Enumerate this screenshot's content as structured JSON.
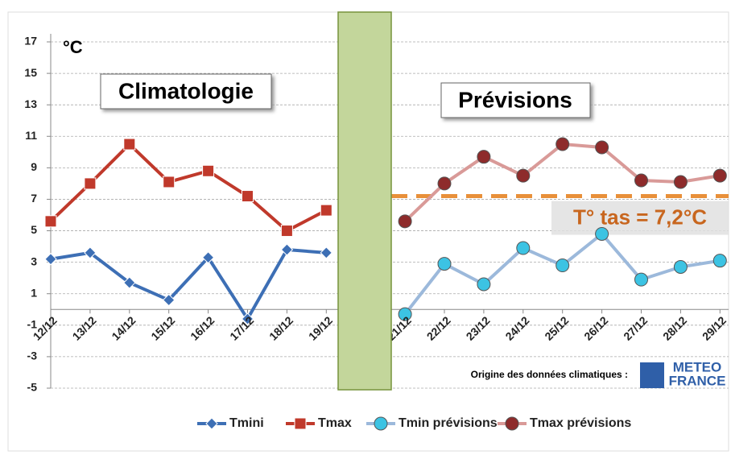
{
  "chart_data": {
    "type": "line",
    "unit_label": "°C",
    "annotations": [
      "Climatologie",
      "Prévisions"
    ],
    "source_label": "Origine des données climatiques :",
    "logo": [
      "METEO",
      "FRANCE"
    ],
    "categories": [
      "12/12",
      "13/12",
      "14/12",
      "15/12",
      "16/12",
      "17/12",
      "18/12",
      "19/12",
      null,
      "21/12",
      "22/12",
      "23/12",
      "24/12",
      "25/12",
      "26/12",
      "27/12",
      "28/12",
      "29/12"
    ],
    "series": [
      {
        "name": "Tmini",
        "color": "#3d6fb5",
        "marker": "diamond",
        "marker_color": "#3d6fb5",
        "values": [
          3.2,
          3.6,
          1.7,
          0.6,
          3.3,
          -0.6,
          3.8,
          3.6,
          null,
          null,
          null,
          null,
          null,
          null,
          null,
          null,
          null,
          null
        ]
      },
      {
        "name": "Tmax",
        "color": "#c0392b",
        "marker": "square",
        "marker_color": "#c0392b",
        "values": [
          5.6,
          8.0,
          10.5,
          8.1,
          8.8,
          7.2,
          5.0,
          6.3,
          null,
          null,
          null,
          null,
          null,
          null,
          null,
          null,
          null,
          null
        ]
      },
      {
        "name": "Tmin prévisions",
        "color": "#9cb9db",
        "marker": "circle",
        "marker_color": "#3cc3e3",
        "values": [
          null,
          null,
          null,
          null,
          null,
          null,
          null,
          null,
          null,
          -0.3,
          2.9,
          1.6,
          3.9,
          2.8,
          4.8,
          1.9,
          2.7,
          3.1
        ]
      },
      {
        "name": "Tmax prévisions",
        "color": "#d99a98",
        "marker": "circle",
        "marker_color": "#8e2b2b",
        "values": [
          null,
          null,
          null,
          null,
          null,
          null,
          null,
          null,
          null,
          5.6,
          8.0,
          9.7,
          8.5,
          10.5,
          10.3,
          8.2,
          8.1,
          8.5
        ]
      }
    ],
    "reference_line": {
      "value": 7.2,
      "label": "T° tas = 7,2°C",
      "color": "#e8903a"
    },
    "ylim": [
      -5,
      17
    ],
    "yticks": [
      -5,
      -3,
      -1,
      1,
      3,
      5,
      7,
      9,
      11,
      13,
      15,
      17
    ],
    "grid": true
  }
}
